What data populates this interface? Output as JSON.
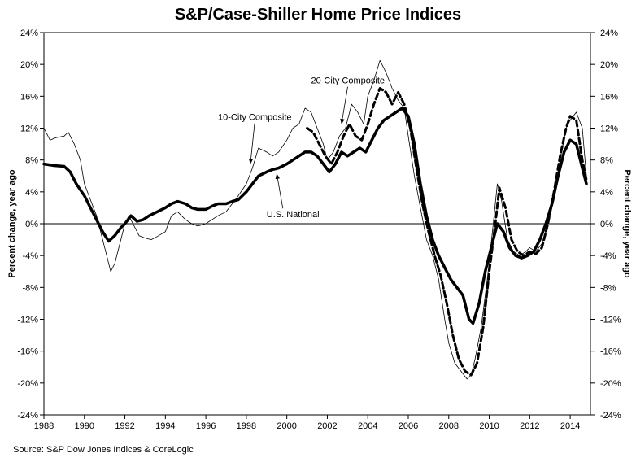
{
  "chart_data": {
    "type": "line",
    "title": "S&P/Case-Shiller Home Price Indices",
    "ylabel": "Percent change, year ago",
    "ylabel_right": "Percent change, year ago",
    "source": "Source: S&P Dow Jones Indices & CoreLogic",
    "xlim": [
      1988,
      2015
    ],
    "ylim": [
      -24,
      24
    ],
    "x_ticks": [
      "1988",
      "1990",
      "1992",
      "1994",
      "1996",
      "1998",
      "2000",
      "2002",
      "2004",
      "2006",
      "2008",
      "2010",
      "2012",
      "2014"
    ],
    "y_ticks": [
      "24%",
      "20%",
      "16%",
      "12%",
      "8%",
      "4%",
      "0%",
      "-4%",
      "-8%",
      "-12%",
      "-16%",
      "-20%",
      "-24%"
    ],
    "grid": false,
    "series": [
      {
        "name": "10-City Composite",
        "style": "thin",
        "x": [
          1988.0,
          1988.3,
          1988.6,
          1989.0,
          1989.2,
          1989.5,
          1989.8,
          1990.0,
          1990.3,
          1990.6,
          1990.9,
          1991.1,
          1991.3,
          1991.5,
          1991.8,
          1992.0,
          1992.2,
          1992.5,
          1992.7,
          1993.0,
          1993.3,
          1993.6,
          1994.0,
          1994.3,
          1994.6,
          1995.0,
          1995.3,
          1995.6,
          1996.0,
          1996.3,
          1996.6,
          1997.0,
          1997.3,
          1997.6,
          1998.0,
          1998.3,
          1998.6,
          1999.0,
          1999.3,
          1999.6,
          2000.0,
          2000.3,
          2000.6,
          2000.9,
          2001.2,
          2001.5,
          2001.8,
          2002.0,
          2002.3,
          2002.6,
          2002.9,
          2003.2,
          2003.5,
          2003.8,
          2004.0,
          2004.3,
          2004.6,
          2004.9,
          2005.2,
          2005.5,
          2005.8,
          2006.0,
          2006.3,
          2006.6,
          2006.9,
          2007.2,
          2007.5,
          2007.8,
          2008.0,
          2008.3,
          2008.6,
          2008.9,
          2009.1,
          2009.3,
          2009.6,
          2009.9,
          2010.2,
          2010.4,
          2010.6,
          2010.9,
          2011.2,
          2011.5,
          2011.8,
          2012.0,
          2012.3,
          2012.6,
          2012.9,
          2013.2,
          2013.5,
          2013.8,
          2014.0,
          2014.3,
          2014.6,
          2014.8
        ],
        "values": [
          12.0,
          10.5,
          10.8,
          11.0,
          11.5,
          10.0,
          8.0,
          5.0,
          3.0,
          1.0,
          -2.0,
          -4.0,
          -6.0,
          -5.0,
          -2.0,
          0.0,
          1.0,
          -0.5,
          -1.5,
          -1.8,
          -2.0,
          -1.6,
          -1.0,
          1.0,
          1.5,
          0.5,
          0.0,
          -0.3,
          0.0,
          0.5,
          1.0,
          1.5,
          2.5,
          3.5,
          5.0,
          7.0,
          9.5,
          9.0,
          8.5,
          9.0,
          10.5,
          12.0,
          12.5,
          14.5,
          14.0,
          12.0,
          10.0,
          8.0,
          9.0,
          11.0,
          12.0,
          15.0,
          14.0,
          12.5,
          16.0,
          18.0,
          20.5,
          19.0,
          17.0,
          15.5,
          14.5,
          11.0,
          6.0,
          2.0,
          -2.0,
          -4.0,
          -7.0,
          -12.0,
          -15.0,
          -17.5,
          -18.5,
          -19.5,
          -19.0,
          -17.0,
          -13.0,
          -7.0,
          0.0,
          5.0,
          3.0,
          -2.0,
          -3.5,
          -4.0,
          -3.5,
          -3.0,
          -3.5,
          -2.5,
          0.0,
          3.0,
          8.0,
          12.0,
          13.0,
          14.0,
          12.0,
          6.0
        ]
      },
      {
        "name": "20-City Composite",
        "style": "dashed",
        "x": [
          2001.0,
          2001.3,
          2001.6,
          2001.9,
          2002.2,
          2002.5,
          2002.8,
          2003.1,
          2003.4,
          2003.7,
          2004.0,
          2004.3,
          2004.6,
          2004.9,
          2005.2,
          2005.5,
          2005.8,
          2006.1,
          2006.4,
          2006.7,
          2007.0,
          2007.3,
          2007.6,
          2007.9,
          2008.2,
          2008.5,
          2008.8,
          2009.1,
          2009.4,
          2009.7,
          2010.0,
          2010.3,
          2010.5,
          2010.8,
          2011.1,
          2011.4,
          2011.7,
          2012.0,
          2012.3,
          2012.6,
          2012.9,
          2013.2,
          2013.5,
          2013.8,
          2014.0,
          2014.3,
          2014.6,
          2014.8
        ],
        "values": [
          12.0,
          11.5,
          10.0,
          8.5,
          7.5,
          9.0,
          11.0,
          12.5,
          11.0,
          10.5,
          12.5,
          15.0,
          17.0,
          16.5,
          15.0,
          16.5,
          15.0,
          12.0,
          7.0,
          2.5,
          -1.0,
          -4.0,
          -6.5,
          -10.0,
          -14.0,
          -17.0,
          -18.5,
          -19.0,
          -17.5,
          -13.0,
          -6.0,
          0.0,
          4.5,
          2.0,
          -2.0,
          -3.5,
          -4.0,
          -3.5,
          -3.8,
          -3.0,
          0.0,
          4.0,
          8.5,
          12.0,
          13.5,
          13.0,
          8.0,
          5.5
        ]
      },
      {
        "name": "U.S. National",
        "style": "thick",
        "x": [
          1988.0,
          1988.5,
          1989.0,
          1989.3,
          1989.6,
          1990.0,
          1990.3,
          1990.6,
          1990.9,
          1991.2,
          1991.5,
          1991.8,
          1992.0,
          1992.3,
          1992.6,
          1992.9,
          1993.2,
          1993.6,
          1994.0,
          1994.3,
          1994.6,
          1995.0,
          1995.3,
          1995.6,
          1996.0,
          1996.3,
          1996.6,
          1997.0,
          1997.3,
          1997.6,
          1998.0,
          1998.3,
          1998.6,
          1999.0,
          1999.3,
          1999.6,
          2000.0,
          2000.3,
          2000.6,
          2000.9,
          2001.2,
          2001.5,
          2001.8,
          2002.1,
          2002.4,
          2002.7,
          2003.0,
          2003.3,
          2003.6,
          2003.9,
          2004.2,
          2004.5,
          2004.8,
          2005.1,
          2005.4,
          2005.7,
          2006.0,
          2006.3,
          2006.6,
          2006.9,
          2007.2,
          2007.5,
          2007.8,
          2008.1,
          2008.4,
          2008.7,
          2009.0,
          2009.2,
          2009.5,
          2009.8,
          2010.1,
          2010.4,
          2010.7,
          2011.0,
          2011.3,
          2011.6,
          2011.9,
          2012.2,
          2012.5,
          2012.8,
          2013.1,
          2013.4,
          2013.7,
          2014.0,
          2014.3,
          2014.6,
          2014.8
        ],
        "values": [
          7.5,
          7.3,
          7.2,
          6.5,
          5.0,
          3.5,
          2.0,
          0.5,
          -1.0,
          -2.2,
          -1.5,
          -0.5,
          0.0,
          1.0,
          0.3,
          0.5,
          1.0,
          1.5,
          2.0,
          2.5,
          2.8,
          2.5,
          2.0,
          1.8,
          1.8,
          2.2,
          2.5,
          2.5,
          2.8,
          3.0,
          4.0,
          5.0,
          6.0,
          6.5,
          6.8,
          7.0,
          7.5,
          8.0,
          8.5,
          9.0,
          9.0,
          8.5,
          7.5,
          6.5,
          7.5,
          9.0,
          8.5,
          9.0,
          9.5,
          9.0,
          10.5,
          12.0,
          13.0,
          13.5,
          14.0,
          14.5,
          13.5,
          10.0,
          5.0,
          1.0,
          -2.0,
          -4.0,
          -5.5,
          -7.0,
          -8.0,
          -9.0,
          -12.0,
          -12.5,
          -10.0,
          -6.0,
          -3.0,
          0.0,
          -1.0,
          -3.0,
          -4.0,
          -4.3,
          -4.0,
          -3.5,
          -2.0,
          0.0,
          2.5,
          6.0,
          9.0,
          10.5,
          10.0,
          7.0,
          5.0
        ]
      }
    ],
    "annotations": [
      {
        "text": "20-City Composite",
        "label_x": 2001.2,
        "label_y": 17.6,
        "arrow_to_x": 2002.7,
        "arrow_to_y": 12.5
      },
      {
        "text": "10-City Composite",
        "label_x": 1996.6,
        "label_y": 13.0,
        "arrow_to_x": 1998.2,
        "arrow_to_y": 7.5
      },
      {
        "text": "U.S. National",
        "label_x": 1999.0,
        "label_y": 0.8,
        "arrow_to_x": 1999.5,
        "arrow_to_y": 6.3
      }
    ]
  }
}
